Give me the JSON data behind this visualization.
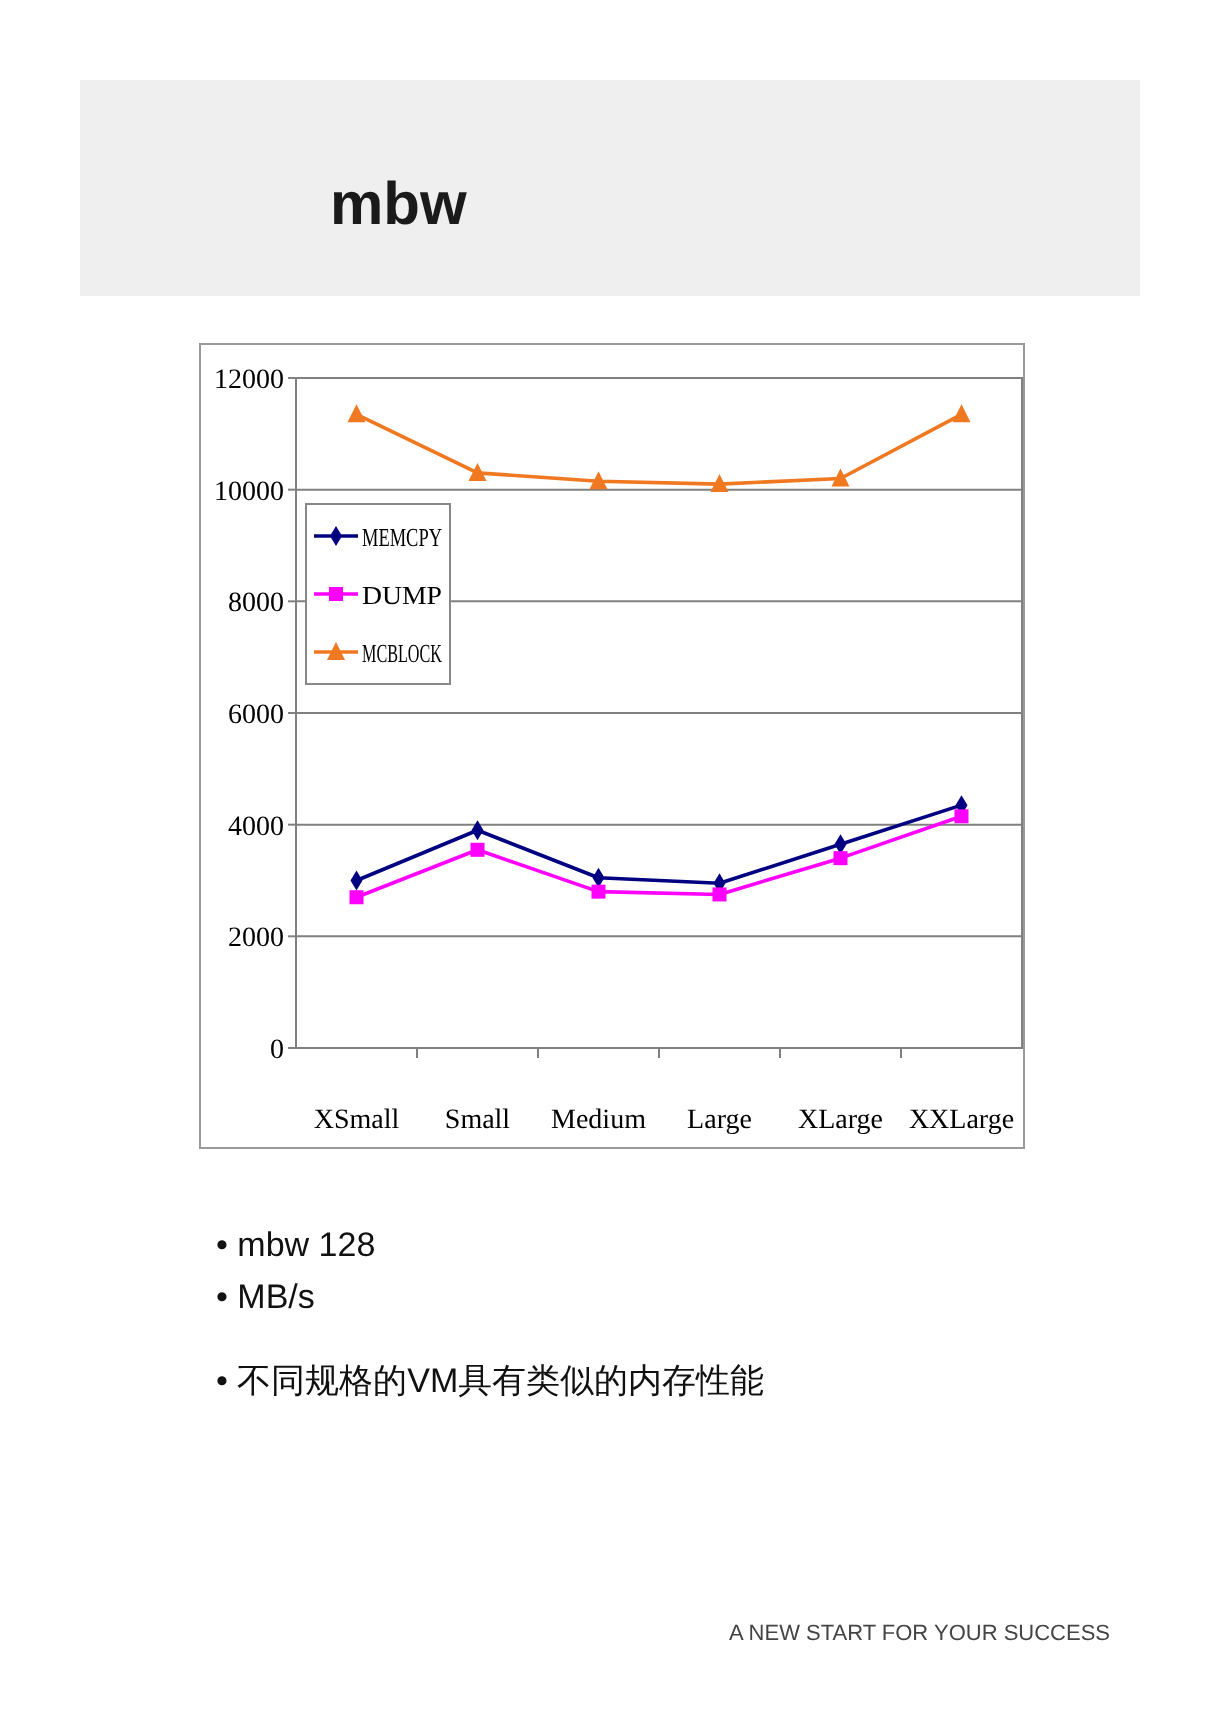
{
  "chart_data": {
    "type": "line",
    "title": "mbw",
    "categories": [
      "XSmall",
      "Small",
      "Medium",
      "Large",
      "XLarge",
      "XXLarge"
    ],
    "series": [
      {
        "name": "MEMCPY",
        "color": "#000080",
        "marker": "diamond",
        "values": [
          3000,
          3900,
          3050,
          2950,
          3650,
          4350
        ]
      },
      {
        "name": "DUMP",
        "color": "#ff00ff",
        "marker": "square",
        "values": [
          2700,
          3550,
          2800,
          2750,
          3400,
          4150
        ]
      },
      {
        "name": "MCBLOCK",
        "color": "#f07820",
        "marker": "triangle",
        "values": [
          11350,
          10300,
          10150,
          10100,
          10200,
          11350
        ]
      }
    ],
    "ylim": [
      0,
      12000
    ],
    "yticks": [
      0,
      2000,
      4000,
      6000,
      8000,
      10000,
      12000
    ],
    "grid": "y",
    "legend": "left",
    "annotations": [
      "• mbw 128",
      "• MB/s",
      "• 不同规格的VM具有类似的内存性能",
      "A NEW START FOR YOUR SUCCESS"
    ]
  }
}
